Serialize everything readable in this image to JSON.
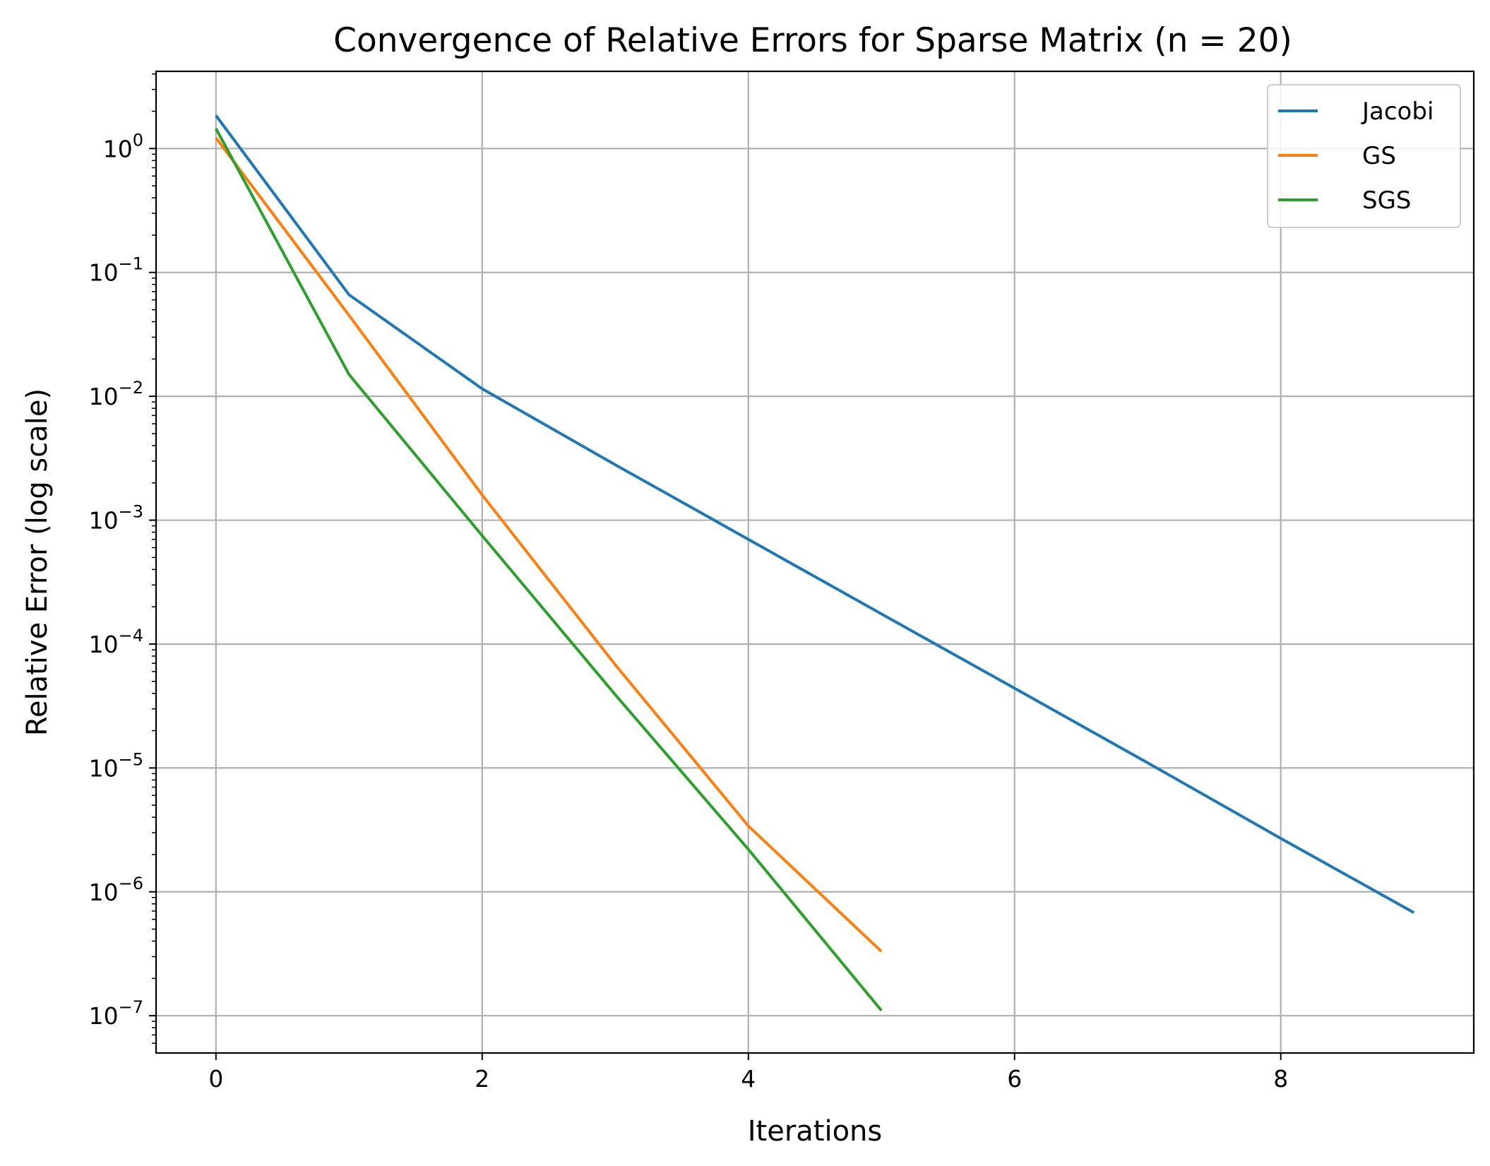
{
  "chart_data": {
    "type": "line",
    "title": "Convergence of Relative Errors for Sparse Matrix (n = 20)",
    "xlabel": "Iterations",
    "ylabel": "Relative Error (log scale)",
    "xscale": "linear",
    "yscale": "log",
    "xlim": [
      -0.45,
      9.45
    ],
    "ylim": [
      5e-08,
      4.2
    ],
    "xticks": [
      0,
      2,
      4,
      6,
      8
    ],
    "yticks": [
      {
        "value": 1e-07,
        "base": "10",
        "exp": "−7"
      },
      {
        "value": 1e-06,
        "base": "10",
        "exp": "−6"
      },
      {
        "value": 1e-05,
        "base": "10",
        "exp": "−5"
      },
      {
        "value": 0.0001,
        "base": "10",
        "exp": "−4"
      },
      {
        "value": 0.001,
        "base": "10",
        "exp": "−3"
      },
      {
        "value": 0.01,
        "base": "10",
        "exp": "−2"
      },
      {
        "value": 0.1,
        "base": "10",
        "exp": "−1"
      },
      {
        "value": 1,
        "base": "10",
        "exp": "0"
      }
    ],
    "grid": true,
    "legend_position": "top-right",
    "series": [
      {
        "name": "Jacobi",
        "color": "#1f77b4",
        "x": [
          0,
          1,
          2,
          3,
          4,
          5,
          6,
          7,
          8,
          9
        ],
        "y": [
          1.85,
          0.066,
          0.0115,
          0.0028,
          0.0007,
          0.000175,
          4.4e-05,
          1.1e-05,
          2.7e-06,
          6.8e-07
        ]
      },
      {
        "name": "GS",
        "color": "#ff7f0e",
        "x": [
          0,
          1,
          2,
          3,
          4,
          5
        ],
        "y": [
          1.22,
          0.045,
          0.0016,
          6.8e-05,
          3.4e-06,
          3.3e-07
        ]
      },
      {
        "name": "SGS",
        "color": "#2ca02c",
        "x": [
          0,
          1,
          2,
          3,
          4,
          5
        ],
        "y": [
          1.45,
          0.015,
          0.00075,
          3.9e-05,
          2.2e-06,
          1.1e-07
        ]
      }
    ]
  }
}
